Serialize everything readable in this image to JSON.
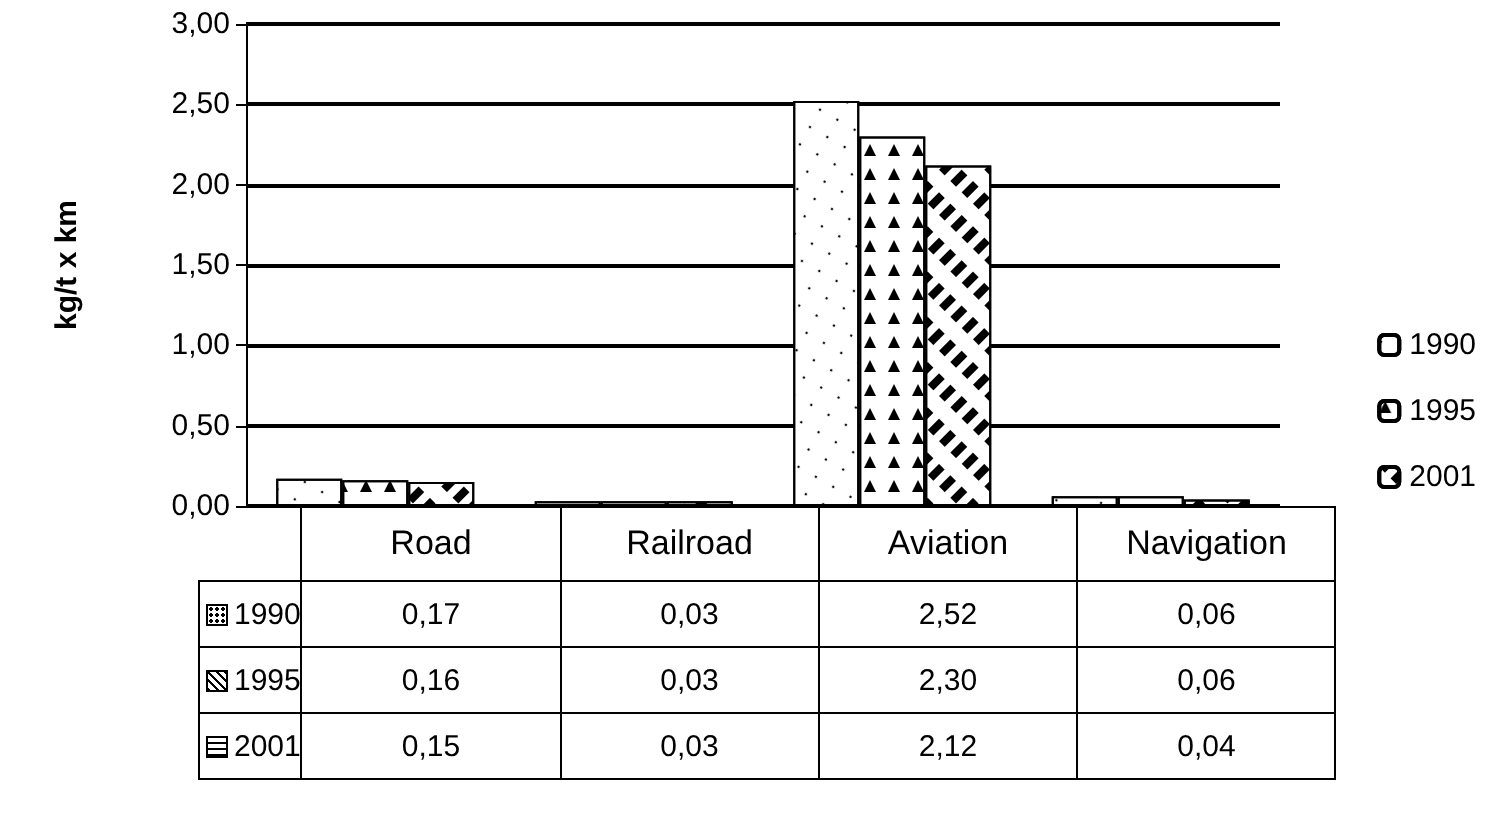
{
  "chart_data": {
    "type": "bar",
    "ylabel": "kg/t x km",
    "categories": [
      "Road",
      "Railroad",
      "Aviation",
      "Navigation"
    ],
    "series": [
      {
        "name": "1990",
        "color": "#ffffff",
        "values": [
          0.17,
          0.03,
          2.52,
          0.06
        ],
        "value_labels": [
          "0,17",
          "0,03",
          "2,52",
          "0,06"
        ]
      },
      {
        "name": "1995",
        "color": "#ffffff",
        "values": [
          0.16,
          0.03,
          2.3,
          0.06
        ],
        "value_labels": [
          "0,16",
          "0,03",
          "2,30",
          "0,06"
        ]
      },
      {
        "name": "2001",
        "color": "#ffffff",
        "values": [
          0.15,
          0.03,
          2.12,
          0.04
        ],
        "value_labels": [
          "0,15",
          "0,03",
          "2,12",
          "0,04"
        ]
      }
    ],
    "ylim": [
      0,
      3
    ],
    "yticks": [
      {
        "value": 0,
        "label": "0,00"
      },
      {
        "value": 0.5,
        "label": "0,50"
      },
      {
        "value": 1,
        "label": "1,00"
      },
      {
        "value": 1.5,
        "label": "1,50"
      },
      {
        "value": 2,
        "label": "2,00"
      },
      {
        "value": 2.5,
        "label": "2,50"
      },
      {
        "value": 3,
        "label": "3,00"
      }
    ],
    "grid": "y",
    "legend": "right"
  }
}
